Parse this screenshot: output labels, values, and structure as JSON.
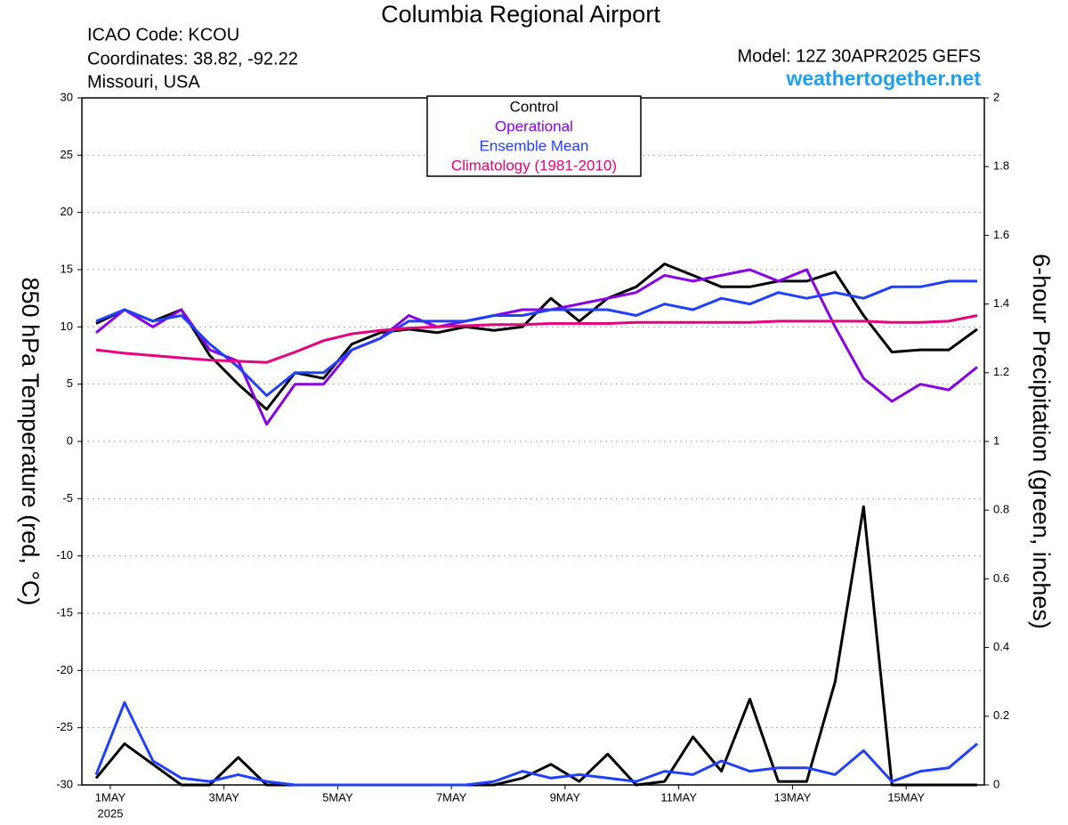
{
  "chart_data": {
    "type": "line",
    "title": "Columbia Regional Airport",
    "info": [
      "ICAO Code: KCOU",
      "Coordinates: 38.82, -92.22",
      "Missouri, USA"
    ],
    "model": "Model: 12Z 30APR2025 GEFS",
    "site": "weathertogether.net",
    "ylabel": "850 hPa Temperature (red, °C)",
    "y2label": "6-hour Precipitation (green, inches)",
    "year_label": "2025",
    "x": [
      6,
      18,
      30,
      42,
      54,
      66,
      78,
      90,
      102,
      114,
      126,
      138,
      150,
      162,
      174,
      186,
      198,
      210,
      222,
      234,
      246,
      258,
      270,
      282,
      294,
      306,
      318,
      330,
      342,
      354,
      366,
      378
    ],
    "xlim": [
      0,
      381
    ],
    "xticks": [
      {
        "value": 12,
        "label": "1MAY"
      },
      {
        "value": 60,
        "label": "3MAY"
      },
      {
        "value": 108,
        "label": "5MAY"
      },
      {
        "value": 156,
        "label": "7MAY"
      },
      {
        "value": 204,
        "label": "9MAY"
      },
      {
        "value": 252,
        "label": "11MAY"
      },
      {
        "value": 300,
        "label": "13MAY"
      },
      {
        "value": 348,
        "label": "15MAY"
      }
    ],
    "ylim": [
      -30,
      30
    ],
    "yticks": [
      -30,
      -25,
      -20,
      -15,
      -10,
      -5,
      0,
      5,
      10,
      15,
      20,
      25,
      30
    ],
    "y2lim": [
      0,
      2
    ],
    "y2ticks": [
      0,
      0.2,
      0.4,
      0.6,
      0.8,
      1,
      1.2,
      1.4,
      1.6,
      1.8,
      2
    ],
    "grid": true,
    "series": [
      {
        "name": "Control",
        "color": "#000000",
        "values": [
          10.3,
          11.5,
          10.5,
          11.5,
          7.5,
          5,
          2.8,
          6,
          5.5,
          8.5,
          9.5,
          9.8,
          9.5,
          10,
          9.7,
          10,
          12.5,
          10.5,
          12.5,
          13.5,
          15.5,
          14.5,
          13.5,
          13.5,
          14,
          14,
          14.8,
          11,
          7.8,
          8,
          8,
          9.8
        ]
      },
      {
        "name": "Operational",
        "color": "#8a00e6",
        "values": [
          9.5,
          11.5,
          10,
          11.5,
          8,
          7,
          1.5,
          5,
          5,
          8,
          9,
          11,
          10,
          10.5,
          11,
          11.5,
          11.5,
          12,
          12.5,
          13,
          14.5,
          14,
          14.5,
          15,
          14,
          15,
          10,
          5.5,
          3.5,
          5,
          4.5,
          6.5
        ]
      },
      {
        "name": "Ensemble Mean",
        "color": "#2040ff",
        "values": [
          10.5,
          11.5,
          10.5,
          11,
          8.5,
          6.5,
          4,
          6,
          6,
          8,
          9,
          10.5,
          10.5,
          10.5,
          11,
          11,
          11.5,
          11.5,
          11.5,
          11,
          12,
          11.5,
          12.5,
          12,
          13,
          12.5,
          13,
          12.5,
          13.5,
          13.5,
          14,
          14
        ]
      },
      {
        "name": "Climatology (1981-2010)",
        "color": "#e6007e",
        "values": [
          8,
          7.7,
          7.5,
          7.3,
          7.1,
          7,
          6.9,
          7.8,
          8.8,
          9.4,
          9.7,
          9.9,
          10,
          10.1,
          10.2,
          10.2,
          10.3,
          10.3,
          10.3,
          10.4,
          10.4,
          10.4,
          10.4,
          10.4,
          10.5,
          10.5,
          10.5,
          10.5,
          10.4,
          10.4,
          10.5,
          11
        ]
      },
      {
        "color": "#000000",
        "axis": "y2",
        "values": [
          0.02,
          0.12,
          0.06,
          0,
          0,
          0.08,
          0,
          0,
          0,
          0,
          0,
          0,
          0,
          0,
          0,
          0.02,
          0.06,
          0.01,
          0.09,
          0,
          0.01,
          0.14,
          0.04,
          0.25,
          0.01,
          0.01,
          0.3,
          0.81,
          0,
          0,
          0,
          0
        ]
      },
      {
        "color": "#2040ff",
        "axis": "y2",
        "values": [
          0.03,
          0.24,
          0.07,
          0.02,
          0.01,
          0.03,
          0.01,
          0,
          0,
          0,
          0,
          0,
          0,
          0,
          0.01,
          0.04,
          0.02,
          0.03,
          0.02,
          0.01,
          0.04,
          0.03,
          0.07,
          0.04,
          0.05,
          0.05,
          0.03,
          0.1,
          0.01,
          0.04,
          0.05,
          0.12
        ]
      }
    ]
  }
}
